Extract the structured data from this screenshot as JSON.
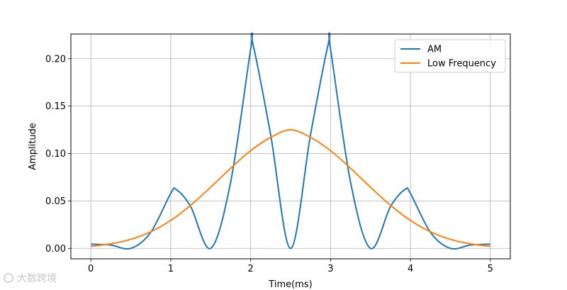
{
  "chart_data": {
    "type": "line",
    "title": "",
    "xlabel": "Time(ms)",
    "ylabel": "Amplitude",
    "xlim": [
      -0.25,
      5.25
    ],
    "ylim": [
      -0.011,
      0.226
    ],
    "xticks": [
      0,
      1,
      2,
      3,
      4,
      5
    ],
    "xtick_labels": [
      "0",
      "1",
      "2",
      "3",
      "4",
      "5"
    ],
    "yticks": [
      0.0,
      0.05,
      0.1,
      0.15,
      0.2
    ],
    "ytick_labels": [
      "0.00",
      "0.05",
      "0.10",
      "0.15",
      "0.20"
    ],
    "grid": true,
    "legend_position": "top-right",
    "series": [
      {
        "name": "AM",
        "color": "#1f77b4",
        "x": [
          0.0,
          0.25,
          0.5,
          0.75,
          1.0,
          1.07,
          1.25,
          1.5,
          1.75,
          2.0,
          2.03,
          2.25,
          2.5,
          2.75,
          2.97,
          3.0,
          3.25,
          3.5,
          3.75,
          3.93,
          4.0,
          4.25,
          4.5,
          4.75,
          5.0
        ],
        "y": [
          0.0045,
          0.0035,
          0.0,
          0.017,
          0.058,
          0.062,
          0.044,
          0.0,
          0.07,
          0.21,
          0.215,
          0.12,
          0.0,
          0.12,
          0.215,
          0.21,
          0.07,
          0.0,
          0.044,
          0.062,
          0.058,
          0.017,
          0.0,
          0.0035,
          0.0045
        ]
      },
      {
        "name": "Low Frequency",
        "color": "#ff7f0e",
        "x": [
          0.0,
          0.25,
          0.5,
          0.75,
          1.0,
          1.25,
          1.5,
          1.75,
          2.0,
          2.25,
          2.5,
          2.75,
          3.0,
          3.25,
          3.5,
          3.75,
          4.0,
          4.25,
          4.5,
          4.75,
          5.0
        ],
        "y": [
          0.0022,
          0.0048,
          0.0095,
          0.0175,
          0.0295,
          0.0455,
          0.0645,
          0.0845,
          0.103,
          0.117,
          0.125,
          0.117,
          0.103,
          0.0845,
          0.0645,
          0.0455,
          0.0295,
          0.0175,
          0.0095,
          0.0048,
          0.0022
        ]
      }
    ]
  },
  "watermark": {
    "text": "大数跨境"
  }
}
